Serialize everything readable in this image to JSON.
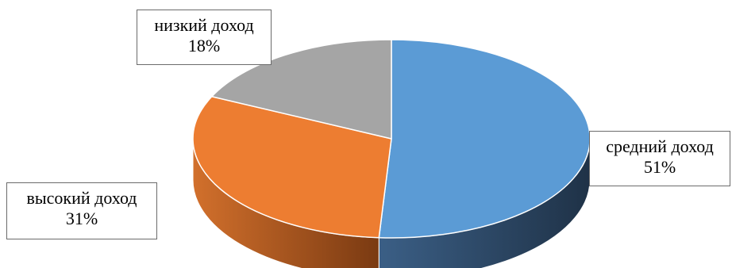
{
  "chart_data": {
    "type": "pie",
    "style": "3d",
    "slices": [
      {
        "label": "средний доход",
        "value": 51,
        "percent": "51%",
        "color": "#5B9BD5",
        "side_color": "#2F4C6C"
      },
      {
        "label": "высокий доход",
        "value": 31,
        "percent": "31%",
        "color": "#ED7D31",
        "side_color": "#A24E1A"
      },
      {
        "label": "низкий доход",
        "value": 18,
        "percent": "18%",
        "color": "#A5A5A5",
        "side_color": "#6E6E6E"
      }
    ]
  }
}
